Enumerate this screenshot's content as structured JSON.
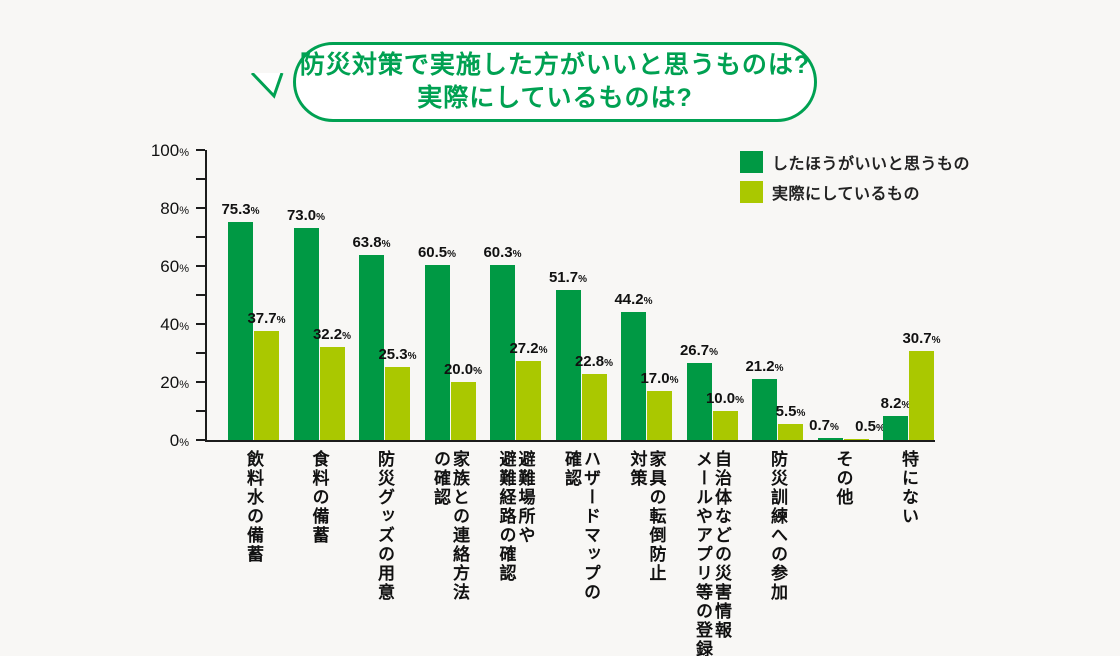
{
  "background": "#f8f7f5",
  "colors": {
    "bubble_green": "#00a152",
    "bar_dark_green": "#009944",
    "bar_light_green": "#aac800",
    "axis_black": "#1c1c1c",
    "bubble_fill": "#ffffff"
  },
  "bubble": {
    "line1": "防災対策で実施した方がいいと思うものは?",
    "line2": "実際にしているものは?"
  },
  "legend": {
    "items": [
      {
        "label": "したほうがいいと思うもの",
        "color": "#009944"
      },
      {
        "label": "実際にしているもの",
        "color": "#aac800"
      }
    ]
  },
  "chart_data": {
    "type": "bar",
    "title": "防災対策で実施した方がいいと思うものは? 実際にしているものは?",
    "categories": [
      "飲料水の備蓄",
      "食料の備蓄",
      "防災グッズの用意",
      "家族との連絡方法\nの確認",
      "避難場所や\n避難経路の確認",
      "ハザードマップの\n確認",
      "家具の転倒防止\n対策",
      "自治体などの災害情報\nメールやアプリ等の登録",
      "防災訓練への参加",
      "その他",
      "特にない"
    ],
    "series": [
      {
        "name": "したほうがいいと思うもの",
        "color": "#009944",
        "values": [
          75.3,
          73.0,
          63.8,
          60.5,
          60.3,
          51.7,
          44.2,
          26.7,
          21.2,
          0.7,
          8.2
        ]
      },
      {
        "name": "実際にしているもの",
        "color": "#aac800",
        "values": [
          37.7,
          32.2,
          25.3,
          20.0,
          27.2,
          22.8,
          17.0,
          10.0,
          5.5,
          0.5,
          30.7
        ]
      }
    ],
    "unit": "%",
    "ylim": [
      0,
      100
    ],
    "yticks_labeled": [
      0,
      20,
      40,
      60,
      80,
      100
    ],
    "yticks_minor_step": 10,
    "grid": false,
    "legend_position": "top-right",
    "value_labels_shown": true
  }
}
